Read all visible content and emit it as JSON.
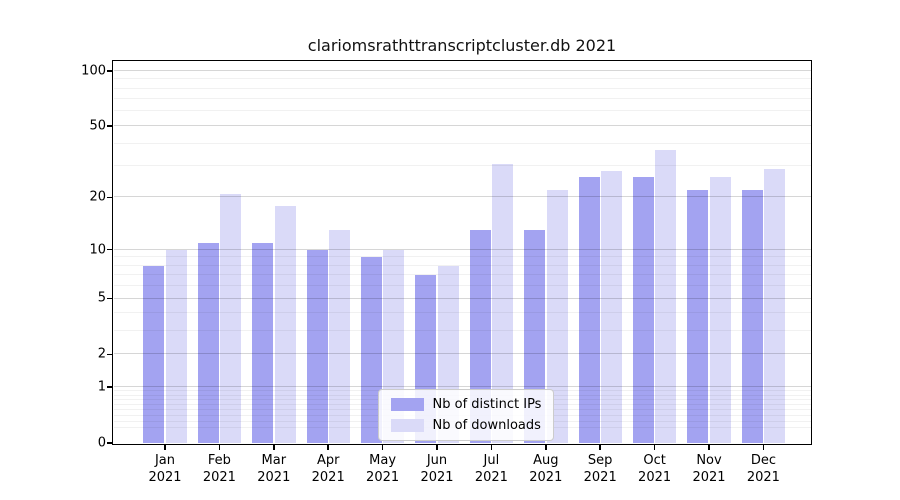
{
  "chart_data": {
    "type": "bar",
    "title": "clariomsrathttranscriptcluster.db 2021",
    "categories": [
      "Jan",
      "Feb",
      "Mar",
      "Apr",
      "May",
      "Jun",
      "Jul",
      "Aug",
      "Sep",
      "Oct",
      "Nov",
      "Dec"
    ],
    "year": "2021",
    "series": [
      {
        "name": "Nb of distinct IPs",
        "color": "#a3a3f1",
        "values": [
          8,
          11,
          11,
          10,
          9,
          7,
          13,
          13,
          26,
          26,
          22,
          22
        ]
      },
      {
        "name": "Nb of downloads",
        "color": "#dadaf8",
        "values": [
          10,
          21,
          18,
          13,
          10,
          8,
          31,
          22,
          28,
          37,
          26,
          29
        ]
      }
    ],
    "yscale": "log1p",
    "yticks": [
      0,
      1,
      2,
      5,
      10,
      20,
      50,
      100
    ],
    "ytick_labels": [
      "0",
      "1",
      "2",
      "5",
      "10",
      "20",
      "50",
      "100"
    ],
    "minor_ticks": [
      0.2,
      0.3,
      0.4,
      0.5,
      0.6,
      0.7,
      0.8,
      0.9,
      3,
      4,
      6,
      7,
      8,
      9,
      30,
      40,
      60,
      70,
      80,
      90
    ],
    "ylim": [
      0,
      113
    ],
    "grid": "on",
    "legend_position": "lower center",
    "colors": {
      "background": "#ffffff",
      "axis_frame": "#000000",
      "grid_major": "rgba(0,0,0,0.16)",
      "grid_minor": "rgba(0,0,0,0.055)"
    }
  }
}
